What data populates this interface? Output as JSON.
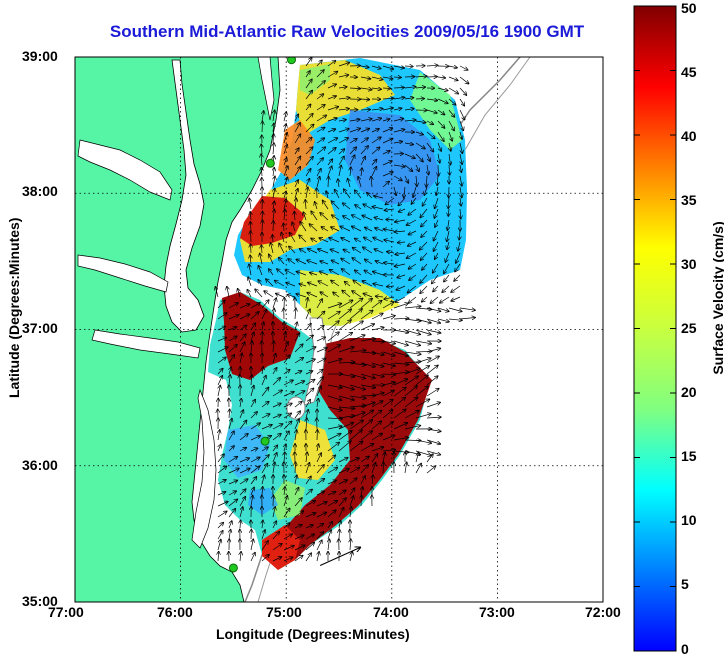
{
  "title": "Southern Mid-Atlantic Raw Velocities 2009/05/16 1900 GMT",
  "xlabel": "Longitude (Degrees:Minutes)",
  "ylabel": "Latitude (Degrees:Minutes)",
  "colorbar": {
    "label": "Surface Velocity (cm/s)",
    "ticks": [
      "0",
      "5",
      "10",
      "15",
      "20",
      "25",
      "30",
      "35",
      "40",
      "45",
      "50"
    ],
    "range": [
      0,
      50
    ],
    "colormap": "jet"
  },
  "x_ticks": [
    "77:00",
    "76:00",
    "75:00",
    "74:00",
    "73:00",
    "72:00"
  ],
  "y_ticks": [
    "39:00",
    "38:00",
    "37:00",
    "36:00",
    "35:00"
  ],
  "map": {
    "lon_range": [
      -77,
      -72
    ],
    "lat_range": [
      35,
      39
    ],
    "land_color": "#55f5a5",
    "grid": "dotted",
    "stations": [
      [
        -74.95,
        38.98
      ],
      [
        -75.15,
        38.22
      ],
      [
        -75.2,
        36.18
      ],
      [
        -75.5,
        35.25
      ]
    ]
  },
  "reference_vector": {
    "lon": -74.3,
    "lat": 35.4
  },
  "colors": {
    "title": "#1a1ad8",
    "station": "#22c822"
  }
}
